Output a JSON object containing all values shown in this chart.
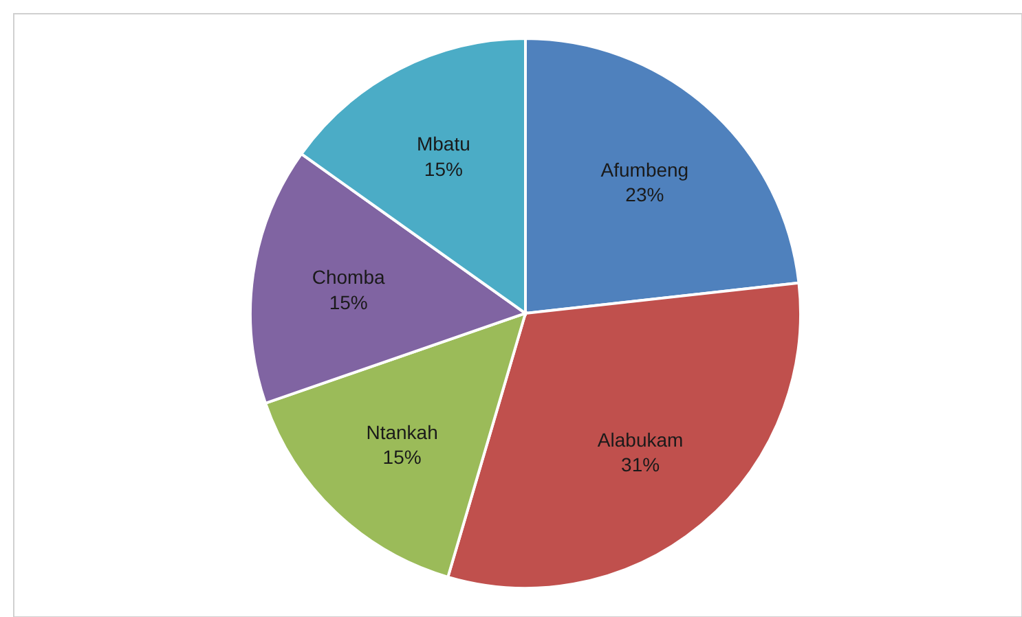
{
  "chart_data": {
    "type": "pie",
    "categories": [
      "Afumbeng",
      "Alabukam",
      "Ntankah",
      "Chomba",
      "Mbatu"
    ],
    "values": [
      23,
      31,
      15,
      15,
      15
    ],
    "value_labels": [
      "23%",
      "31%",
      "15%",
      "15%",
      "15%"
    ],
    "colors": [
      "#4f81bd",
      "#c0504d",
      "#9bbb59",
      "#8064a2",
      "#4bacc6"
    ]
  }
}
